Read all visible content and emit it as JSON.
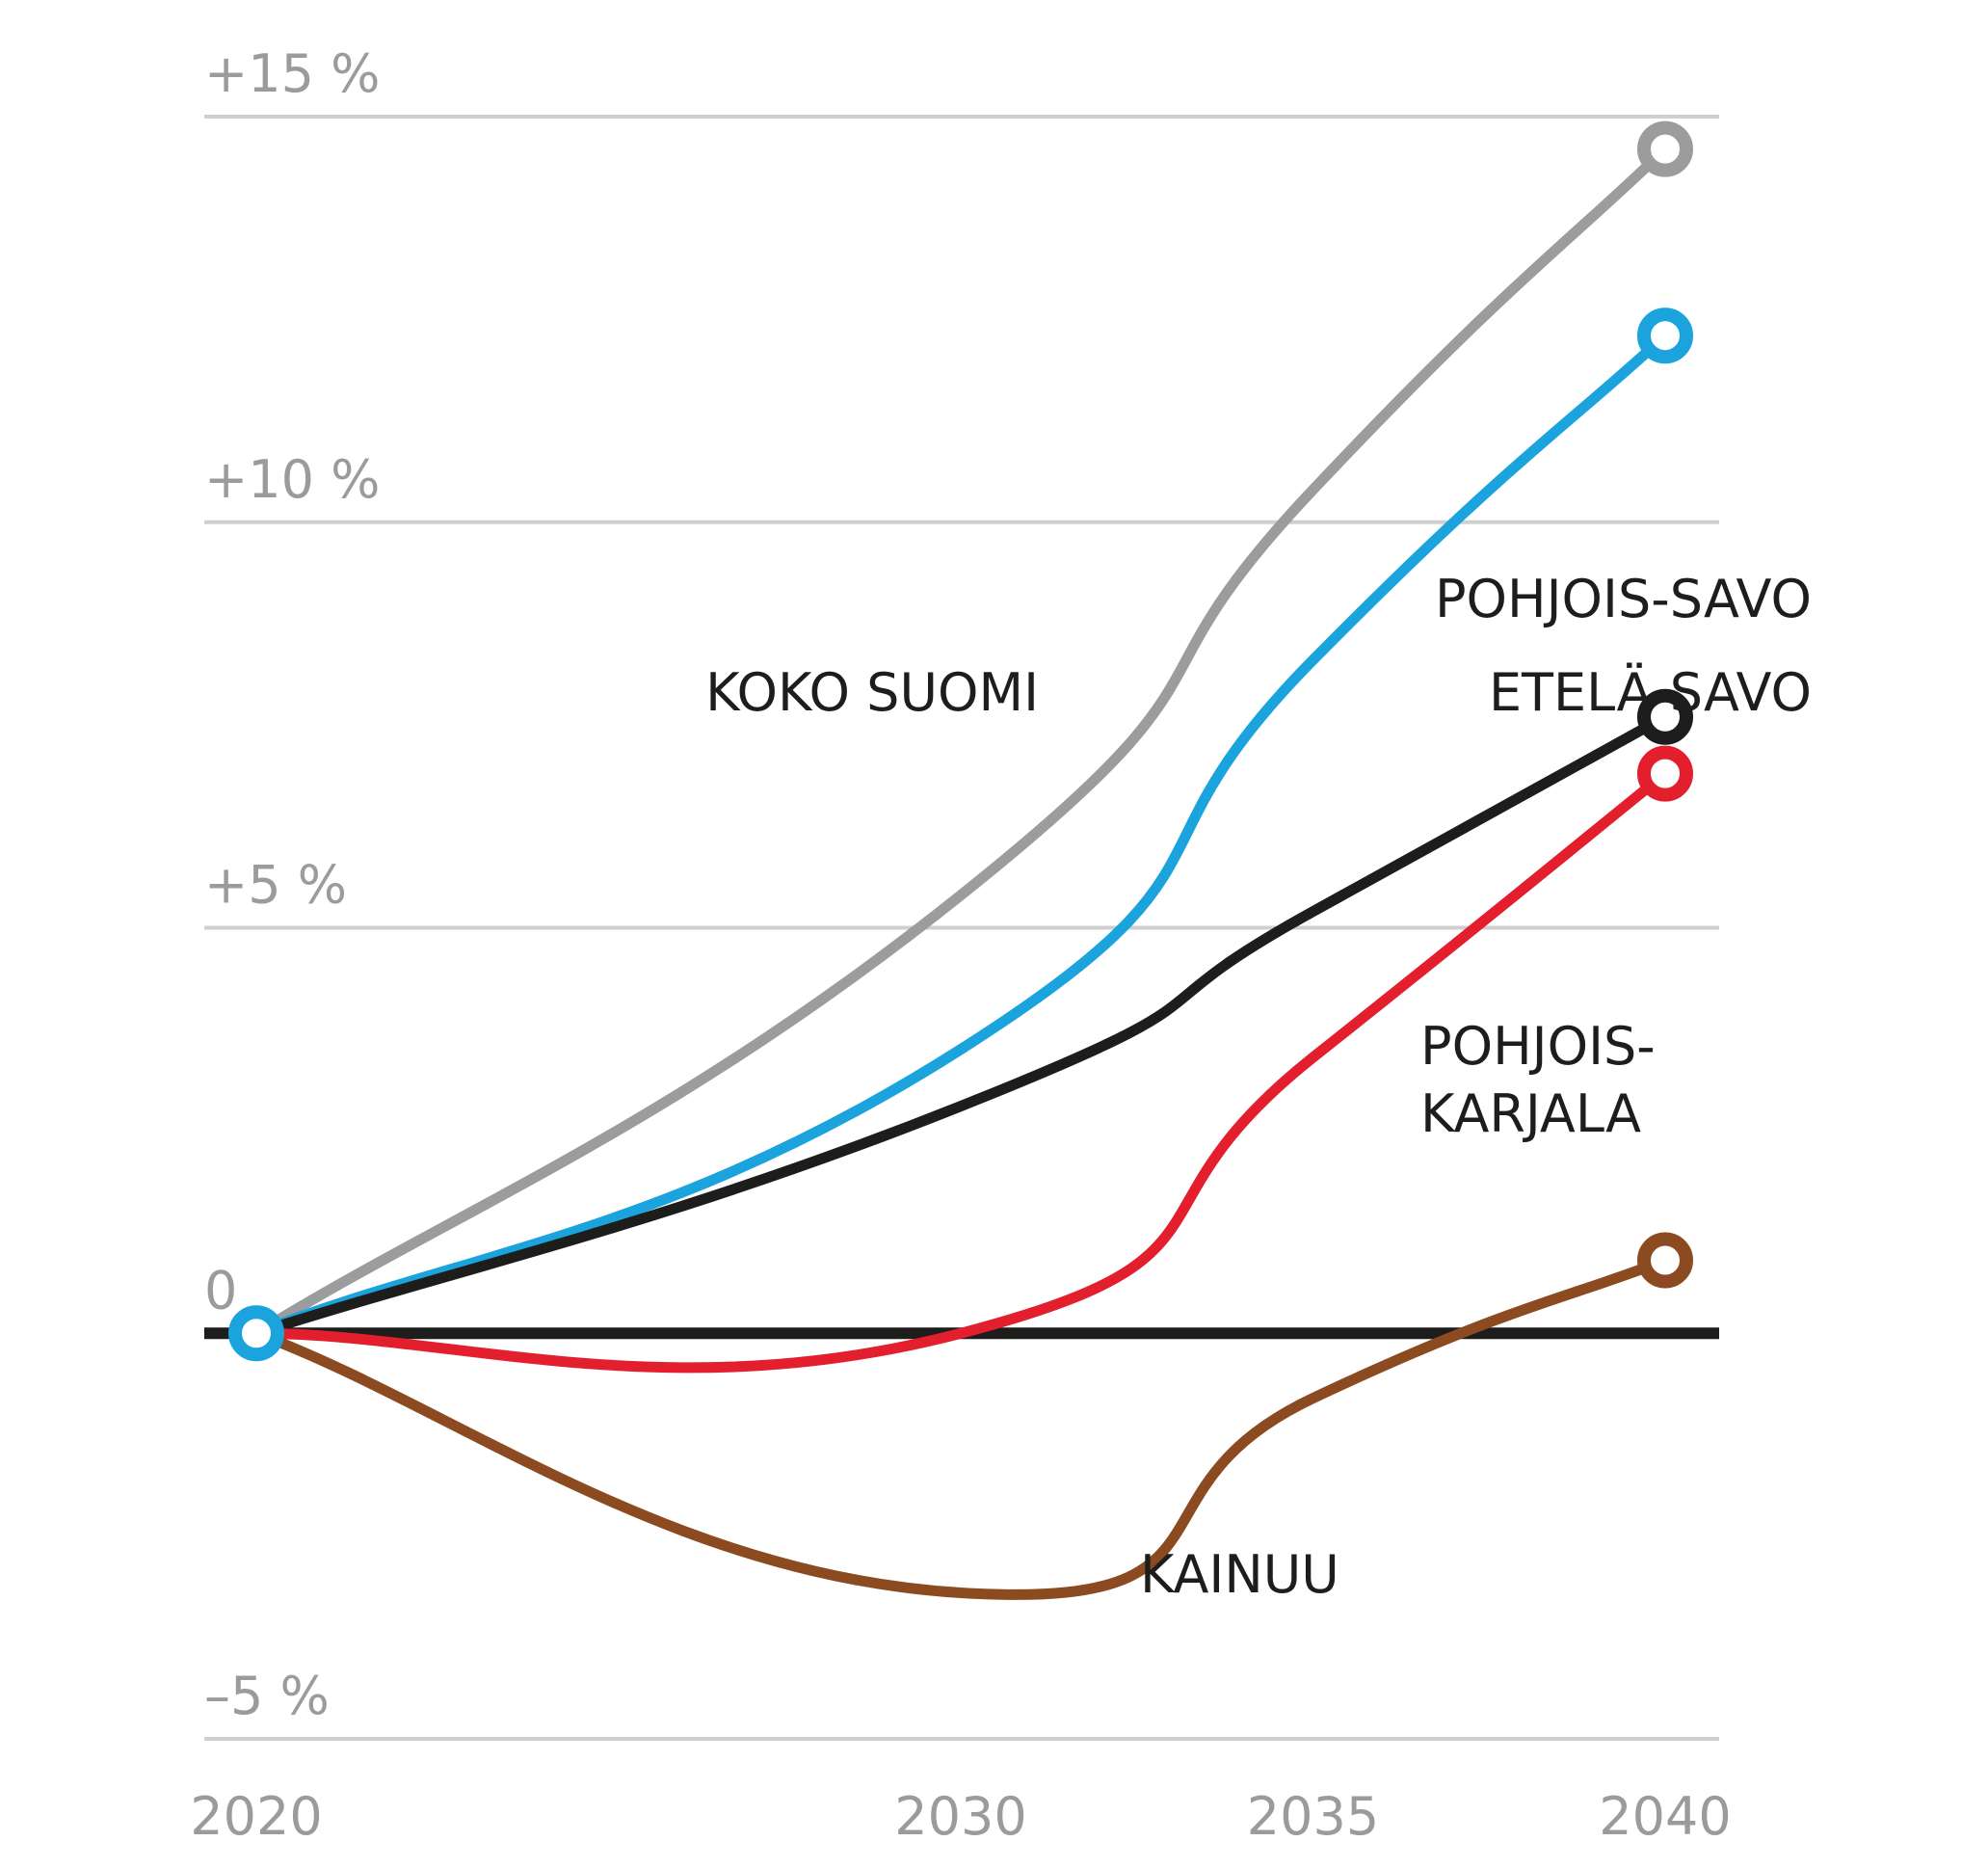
{
  "chart_data": {
    "type": "line",
    "title": "",
    "xlabel": "",
    "ylabel": "",
    "x": [
      2020,
      2030,
      2035,
      2040
    ],
    "x_tick_labels": [
      "2020",
      "2030",
      "2035",
      "2040"
    ],
    "ylim": [
      -5,
      15
    ],
    "y_ticks": [
      15,
      10,
      5,
      0,
      -5
    ],
    "y_tick_labels": [
      "+15 %",
      "+10 %",
      "+5 %",
      "0",
      "–5 %"
    ],
    "grid": true,
    "series": [
      {
        "name": "KOKO SUOMI",
        "color": "#9b9c9e",
        "values": [
          0,
          5.4,
          10.4,
          14.6
        ],
        "label_lines": [
          "KOKO SUOMI"
        ]
      },
      {
        "name": "POHJOIS-SAVO",
        "color": "#1aa3dd",
        "values": [
          0,
          3.5,
          8.3,
          12.3
        ],
        "label_lines": [
          "POHJOIS-SAVO"
        ]
      },
      {
        "name": "ETELÄ-SAVO",
        "color": "#1d1d1b",
        "values": [
          0,
          2.8,
          5.2,
          7.6
        ],
        "label_lines": [
          "ETELÄ-SAVO"
        ]
      },
      {
        "name": "POHJOIS-KARJALA",
        "color": "#e31e2d",
        "values": [
          0,
          0,
          3.4,
          6.9
        ],
        "label_lines": [
          "POHJOIS-",
          "KARJALA"
        ]
      },
      {
        "name": "KAINUU",
        "color": "#8b4a1f",
        "values": [
          0,
          -3.2,
          -0.8,
          0.9
        ],
        "label_lines": [
          "KAINUU"
        ]
      }
    ]
  }
}
